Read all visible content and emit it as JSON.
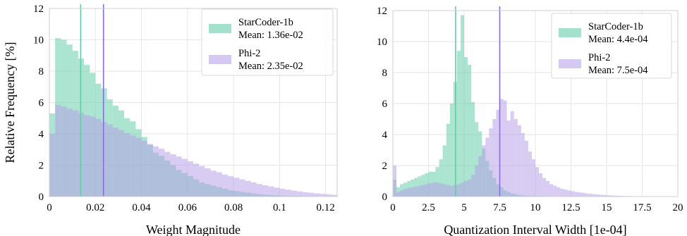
{
  "chart_data": [
    {
      "type": "histogram",
      "xlabel": "Weight Magnitude",
      "ylabel": "Relative Frequency [%]",
      "xlim": [
        0,
        0.125
      ],
      "ylim": [
        0,
        12
      ],
      "xticks": [
        0,
        0.02,
        0.04,
        0.06,
        0.08,
        0.1,
        0.12
      ],
      "xtick_labels": [
        "0",
        "0.02",
        "0.04",
        "0.06",
        "0.08",
        "0.1",
        "0.12"
      ],
      "yticks": [
        0,
        2,
        4,
        6,
        8,
        10,
        12
      ],
      "grid": true,
      "legend_position": "top-right",
      "bin_start": 0,
      "bin_width": 0.0025,
      "series": [
        {
          "name": "StarCoder-1b",
          "mean_label": "Mean: 1.36e-02",
          "mean": 0.0136,
          "color": "#66cdaa",
          "values": [
            5.3,
            10.1,
            10.0,
            9.7,
            9.3,
            8.8,
            8.4,
            7.9,
            7.2,
            6.9,
            6.2,
            5.8,
            5.5,
            5.0,
            4.8,
            4.3,
            3.8,
            3.3,
            2.8,
            2.6,
            2.3,
            2.0,
            1.7,
            1.5,
            1.3,
            1.1,
            0.9,
            0.8,
            0.7,
            0.6,
            0.5,
            0.4,
            0.35,
            0.3,
            0.25,
            0.2,
            0.15,
            0.12,
            0.1,
            0.08,
            0.06,
            0.05,
            0.04,
            0.03,
            0.02,
            0.02,
            0.01,
            0.01,
            0.01,
            0.0
          ]
        },
        {
          "name": "Phi-2",
          "mean_label": "Mean: 2.35e-02",
          "mean": 0.0235,
          "color": "#b39ae8",
          "values": [
            4.0,
            5.85,
            5.75,
            5.6,
            5.5,
            5.35,
            5.2,
            5.1,
            4.95,
            4.75,
            4.6,
            4.4,
            4.25,
            4.05,
            3.9,
            3.75,
            3.55,
            3.35,
            3.2,
            3.05,
            2.85,
            2.7,
            2.55,
            2.4,
            2.25,
            2.1,
            1.95,
            1.8,
            1.65,
            1.55,
            1.4,
            1.3,
            1.2,
            1.1,
            1.0,
            0.9,
            0.8,
            0.72,
            0.65,
            0.57,
            0.5,
            0.44,
            0.38,
            0.33,
            0.28,
            0.24,
            0.2,
            0.17,
            0.14,
            0.11
          ]
        }
      ]
    },
    {
      "type": "histogram",
      "xlabel": "Quantization Interval Width [1e-04]",
      "ylabel": "",
      "xlim": [
        0,
        20
      ],
      "ylim": [
        0,
        12
      ],
      "xticks": [
        0,
        2.5,
        5,
        7.5,
        10,
        12.5,
        15,
        17.5,
        20
      ],
      "xtick_labels": [
        "0",
        "2.5",
        "5",
        "7.5",
        "10",
        "12.5",
        "15",
        "17.5",
        "20"
      ],
      "yticks": [
        0,
        2,
        4,
        6,
        8,
        10,
        12
      ],
      "grid": true,
      "legend_position": "top-right",
      "bin_start": 0,
      "bin_width": 0.25,
      "series": [
        {
          "name": "StarCoder-1b",
          "mean_label": "Mean: 4.4e-04",
          "mean": 4.4,
          "color": "#66cdaa",
          "values": [
            1.1,
            0.6,
            0.8,
            0.9,
            1.0,
            1.1,
            1.2,
            1.3,
            1.4,
            1.5,
            1.6,
            1.6,
            1.9,
            2.4,
            3.3,
            4.7,
            6.0,
            7.4,
            9.4,
            11.7,
            9.0,
            8.5,
            6.1,
            4.8,
            4.2,
            3.1,
            2.3,
            1.7,
            1.2,
            0.8,
            0.6,
            0.4,
            0.3,
            0.2,
            0.15,
            0.1,
            0.08,
            0.06,
            0.05,
            0.04,
            0.03,
            0.02,
            0.02,
            0.01,
            0.01,
            0.01,
            0.0,
            0.0,
            0.0,
            0.0,
            0.0,
            0.0,
            0.0,
            0.0,
            0.0,
            0.0,
            0.0,
            0.0,
            0.0,
            0.0,
            0.0,
            0.0,
            0.0,
            0.0,
            0.0,
            0.0,
            0.0,
            0.0,
            0.0,
            0.0,
            0.0,
            0.0,
            0.0,
            0.0,
            0.0,
            0.0,
            0.0,
            0.0,
            0.0,
            0.0
          ]
        },
        {
          "name": "Phi-2",
          "mean_label": "Mean: 7.5e-04",
          "mean": 7.5,
          "color": "#b39ae8",
          "values": [
            2.0,
            0.3,
            0.4,
            0.5,
            0.55,
            0.6,
            0.65,
            0.7,
            0.75,
            0.8,
            0.85,
            0.9,
            0.9,
            0.85,
            0.8,
            0.75,
            0.7,
            0.75,
            0.8,
            0.9,
            1.0,
            1.1,
            1.4,
            2.0,
            2.6,
            3.3,
            3.8,
            4.4,
            5.0,
            5.6,
            6.3,
            6.2,
            4.9,
            5.5,
            5.0,
            4.6,
            4.1,
            3.6,
            2.9,
            2.4,
            1.9,
            1.5,
            1.2,
            1.0,
            0.8,
            0.7,
            0.6,
            0.5,
            0.45,
            0.4,
            0.35,
            0.3,
            0.27,
            0.24,
            0.2,
            0.18,
            0.15,
            0.13,
            0.11,
            0.1,
            0.08,
            0.07,
            0.06,
            0.05,
            0.04,
            0.03,
            0.03,
            0.02,
            0.02,
            0.02,
            0.01,
            0.01,
            0.01,
            0.01,
            0.0,
            0.0,
            0.0,
            0.0,
            0.0,
            0.0
          ]
        }
      ]
    }
  ]
}
